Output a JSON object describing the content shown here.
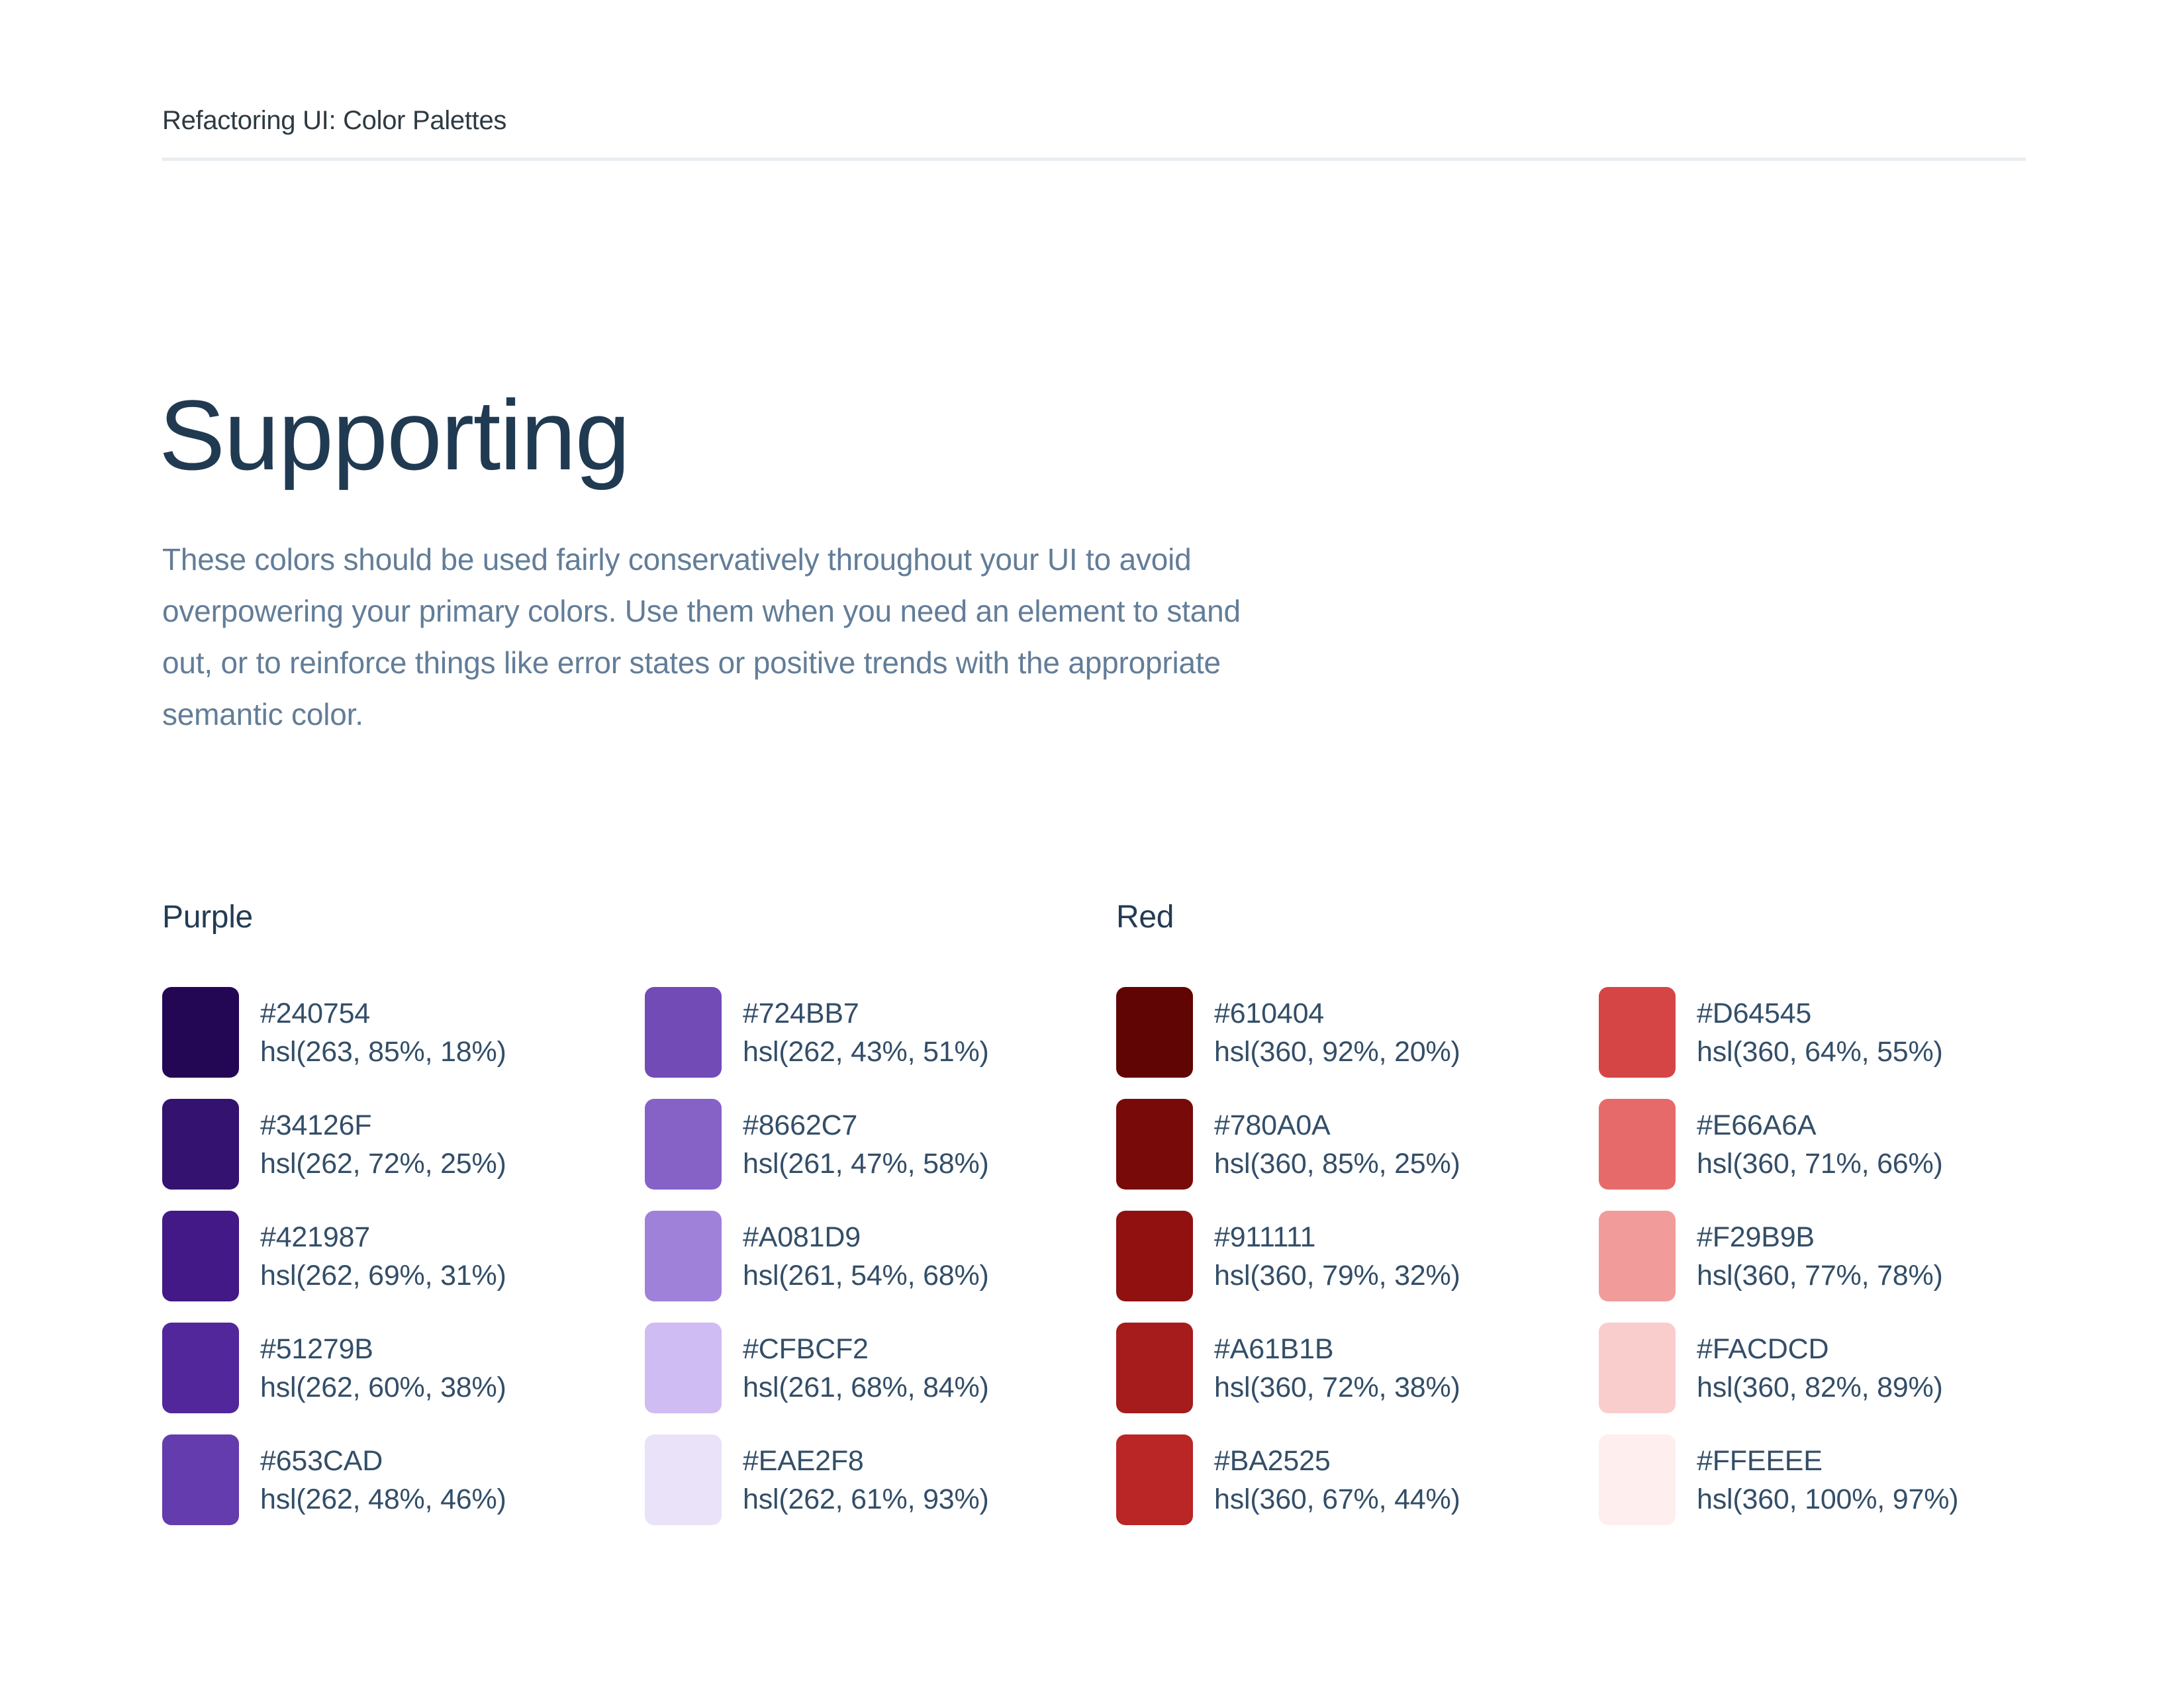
{
  "page": {
    "header": "Refactoring UI: Color Palettes",
    "title": "Supporting",
    "description": "These colors should be used fairly conservatively throughout your UI to avoid overpowering your primary colors. Use them when you need an element to stand out, or to reinforce things like error states or positive trends with the appropriate semantic color."
  },
  "colors": {
    "header_text": "#2E3A42",
    "heading": "#203A52",
    "section_label": "#243B53",
    "swatch_label": "#334E68",
    "paragraph": "#627D98",
    "divider": "#E8EDF2",
    "background": "#FFFFFF"
  },
  "palettes": [
    {
      "name": "Purple",
      "columns": [
        [
          {
            "hex": "#240754",
            "hsl": "hsl(263, 85%, 18%)"
          },
          {
            "hex": "#34126F",
            "hsl": "hsl(262, 72%, 25%)"
          },
          {
            "hex": "#421987",
            "hsl": "hsl(262, 69%, 31%)"
          },
          {
            "hex": "#51279B",
            "hsl": "hsl(262, 60%, 38%)"
          },
          {
            "hex": "#653CAD",
            "hsl": "hsl(262, 48%, 46%)"
          }
        ],
        [
          {
            "hex": "#724BB7",
            "hsl": "hsl(262, 43%, 51%)"
          },
          {
            "hex": "#8662C7",
            "hsl": "hsl(261, 47%, 58%)"
          },
          {
            "hex": "#A081D9",
            "hsl": "hsl(261, 54%, 68%)"
          },
          {
            "hex": "#CFBCF2",
            "hsl": "hsl(261, 68%, 84%)"
          },
          {
            "hex": "#EAE2F8",
            "hsl": "hsl(262, 61%, 93%)"
          }
        ]
      ]
    },
    {
      "name": "Red",
      "columns": [
        [
          {
            "hex": "#610404",
            "hsl": "hsl(360, 92%, 20%)"
          },
          {
            "hex": "#780A0A",
            "hsl": "hsl(360, 85%, 25%)"
          },
          {
            "hex": "#911111",
            "hsl": "hsl(360, 79%, 32%)"
          },
          {
            "hex": "#A61B1B",
            "hsl": "hsl(360, 72%, 38%)"
          },
          {
            "hex": "#BA2525",
            "hsl": "hsl(360, 67%, 44%)"
          }
        ],
        [
          {
            "hex": "#D64545",
            "hsl": "hsl(360, 64%, 55%)"
          },
          {
            "hex": "#E66A6A",
            "hsl": "hsl(360, 71%, 66%)"
          },
          {
            "hex": "#F29B9B",
            "hsl": "hsl(360, 77%, 78%)"
          },
          {
            "hex": "#FACDCD",
            "hsl": "hsl(360, 82%, 89%)"
          },
          {
            "hex": "#FFEEEE",
            "hsl": "hsl(360, 100%, 97%)"
          }
        ]
      ]
    }
  ]
}
